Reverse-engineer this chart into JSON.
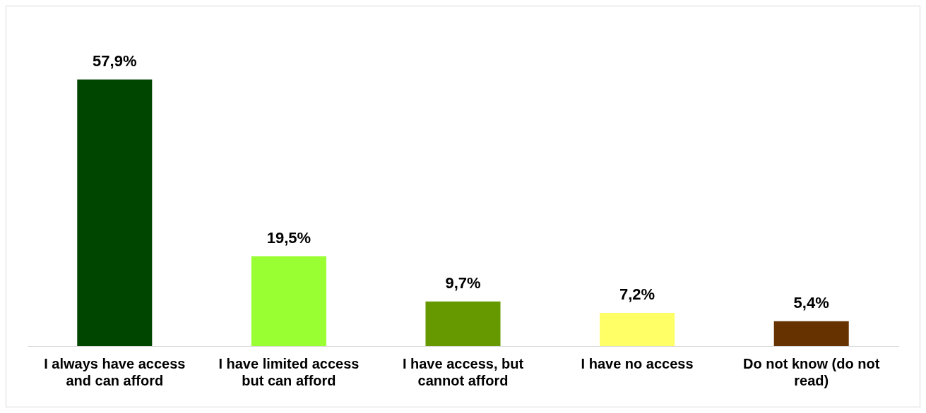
{
  "chart_data": {
    "type": "bar",
    "categories": [
      "I always have access and can afford",
      "I have limited access but can afford",
      "I have access, but cannot afford",
      "I have no access",
      "Do not know (do not read)"
    ],
    "values": [
      57.9,
      19.5,
      9.7,
      7.2,
      5.4
    ],
    "colors": [
      "#004600",
      "#99ff33",
      "#669900",
      "#ffff66",
      "#663300"
    ],
    "value_labels": [
      "57,9%",
      "19,5%",
      "9,7%",
      "7,2%",
      "5,4%"
    ],
    "grid": false,
    "legend": false
  }
}
